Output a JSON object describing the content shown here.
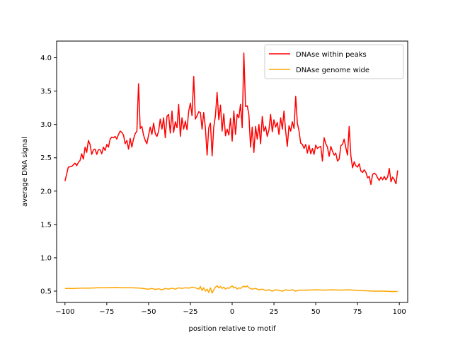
{
  "chart_data": {
    "type": "line",
    "title": "",
    "xlabel": "position relative to motif",
    "ylabel": "average DNA signal",
    "xlim": [
      -105,
      105
    ],
    "ylim": [
      0.33,
      4.25
    ],
    "xticks": [
      -100,
      -75,
      -50,
      -25,
      0,
      25,
      50,
      75,
      100
    ],
    "xtick_labels": [
      "−100",
      "−75",
      "−50",
      "−25",
      "0",
      "25",
      "50",
      "75",
      "100"
    ],
    "yticks": [
      0.5,
      1.0,
      1.5,
      2.0,
      2.5,
      3.0,
      3.5,
      4.0
    ],
    "ytick_labels": [
      "0.5",
      "1.0",
      "1.5",
      "2.0",
      "2.5",
      "3.0",
      "3.5",
      "4.0"
    ],
    "grid": false,
    "legend": "top-right",
    "series": [
      {
        "name": "DNAse within peaks",
        "color": "#ff0000",
        "points": [
          [
            -100,
            2.15
          ],
          [
            -98,
            2.36
          ],
          [
            -96,
            2.37
          ],
          [
            -94,
            2.42
          ],
          [
            -93,
            2.38
          ],
          [
            -92,
            2.43
          ],
          [
            -91,
            2.46
          ],
          [
            -90,
            2.56
          ],
          [
            -89,
            2.48
          ],
          [
            -88,
            2.66
          ],
          [
            -87,
            2.58
          ],
          [
            -86,
            2.76
          ],
          [
            -85,
            2.7
          ],
          [
            -84,
            2.55
          ],
          [
            -83,
            2.62
          ],
          [
            -82,
            2.63
          ],
          [
            -81,
            2.55
          ],
          [
            -80,
            2.62
          ],
          [
            -79,
            2.62
          ],
          [
            -78,
            2.56
          ],
          [
            -77,
            2.66
          ],
          [
            -76,
            2.61
          ],
          [
            -75,
            2.7
          ],
          [
            -74,
            2.66
          ],
          [
            -73,
            2.78
          ],
          [
            -72,
            2.81
          ],
          [
            -71,
            2.8
          ],
          [
            -70,
            2.82
          ],
          [
            -69,
            2.78
          ],
          [
            -68,
            2.85
          ],
          [
            -67,
            2.9
          ],
          [
            -66,
            2.88
          ],
          [
            -65,
            2.84
          ],
          [
            -64,
            2.71
          ],
          [
            -63,
            2.76
          ],
          [
            -62,
            2.63
          ],
          [
            -61,
            2.79
          ],
          [
            -60,
            2.66
          ],
          [
            -59,
            2.78
          ],
          [
            -58,
            2.86
          ],
          [
            -57,
            2.9
          ],
          [
            -56,
            3.61
          ],
          [
            -55,
            2.94
          ],
          [
            -54,
            2.97
          ],
          [
            -53,
            2.84
          ],
          [
            -52,
            2.76
          ],
          [
            -51,
            2.71
          ],
          [
            -50,
            2.84
          ],
          [
            -49,
            2.96
          ],
          [
            -48,
            2.85
          ],
          [
            -47,
            3.02
          ],
          [
            -46,
            2.86
          ],
          [
            -45,
            2.82
          ],
          [
            -44,
            2.9
          ],
          [
            -43,
            3.08
          ],
          [
            -42,
            2.93
          ],
          [
            -41,
            3.1
          ],
          [
            -40,
            2.8
          ],
          [
            -39,
            3.12
          ],
          [
            -38,
            3.15
          ],
          [
            -37,
            2.87
          ],
          [
            -36,
            3.2
          ],
          [
            -35,
            2.88
          ],
          [
            -34,
            3.04
          ],
          [
            -33,
            2.95
          ],
          [
            -32,
            3.3
          ],
          [
            -31,
            2.82
          ],
          [
            -30,
            3.1
          ],
          [
            -29,
            2.93
          ],
          [
            -28,
            3.05
          ],
          [
            -27,
            2.92
          ],
          [
            -26,
            3.2
          ],
          [
            -25,
            3.32
          ],
          [
            -24,
            3.13
          ],
          [
            -23,
            3.72
          ],
          [
            -22,
            3.08
          ],
          [
            -21,
            3.13
          ],
          [
            -20,
            3.19
          ],
          [
            -19,
            3.18
          ],
          [
            -18,
            2.93
          ],
          [
            -17,
            3.18
          ],
          [
            -16,
            2.95
          ],
          [
            -15,
            2.54
          ],
          [
            -14,
            2.95
          ],
          [
            -13,
            3.02
          ],
          [
            -12,
            2.53
          ],
          [
            -11,
            2.96
          ],
          [
            -10,
            3.13
          ],
          [
            -9,
            3.48
          ],
          [
            -8,
            3.07
          ],
          [
            -7,
            3.29
          ],
          [
            -6,
            2.9
          ],
          [
            -5,
            3.16
          ],
          [
            -4,
            2.83
          ],
          [
            -3,
            2.93
          ],
          [
            -2,
            2.84
          ],
          [
            -1,
            3.09
          ],
          [
            0,
            2.75
          ],
          [
            1,
            3.2
          ],
          [
            2,
            2.85
          ],
          [
            3,
            3.15
          ],
          [
            4,
            3.1
          ],
          [
            5,
            3.3
          ],
          [
            6,
            2.95
          ],
          [
            7,
            4.07
          ],
          [
            8,
            3.27
          ],
          [
            9,
            3.28
          ],
          [
            10,
            3.15
          ],
          [
            11,
            2.66
          ],
          [
            12,
            2.96
          ],
          [
            13,
            2.58
          ],
          [
            14,
            2.97
          ],
          [
            15,
            2.78
          ],
          [
            16,
            3.0
          ],
          [
            17,
            2.71
          ],
          [
            18,
            3.12
          ],
          [
            19,
            2.9
          ],
          [
            20,
            2.97
          ],
          [
            21,
            2.82
          ],
          [
            22,
            2.92
          ],
          [
            23,
            3.15
          ],
          [
            24,
            2.89
          ],
          [
            25,
            3.07
          ],
          [
            26,
            2.96
          ],
          [
            27,
            3.03
          ],
          [
            28,
            2.85
          ],
          [
            29,
            3.1
          ],
          [
            30,
            2.93
          ],
          [
            31,
            3.2
          ],
          [
            32,
            2.9
          ],
          [
            33,
            2.67
          ],
          [
            34,
            2.98
          ],
          [
            35,
            2.9
          ],
          [
            36,
            3.04
          ],
          [
            37,
            2.94
          ],
          [
            38,
            3.42
          ],
          [
            39,
            3.02
          ],
          [
            40,
            2.9
          ],
          [
            41,
            2.72
          ],
          [
            42,
            2.7
          ],
          [
            43,
            2.64
          ],
          [
            44,
            2.7
          ],
          [
            45,
            2.57
          ],
          [
            46,
            2.69
          ],
          [
            47,
            2.56
          ],
          [
            48,
            2.64
          ],
          [
            49,
            2.55
          ],
          [
            50,
            2.69
          ],
          [
            51,
            2.64
          ],
          [
            52,
            2.66
          ],
          [
            53,
            2.67
          ],
          [
            54,
            2.45
          ],
          [
            55,
            2.8
          ],
          [
            56,
            2.71
          ],
          [
            57,
            2.66
          ],
          [
            58,
            2.52
          ],
          [
            59,
            2.67
          ],
          [
            60,
            2.6
          ],
          [
            61,
            2.54
          ],
          [
            62,
            2.57
          ],
          [
            63,
            2.45
          ],
          [
            64,
            2.48
          ],
          [
            65,
            2.68
          ],
          [
            66,
            2.7
          ],
          [
            67,
            2.78
          ],
          [
            68,
            2.65
          ],
          [
            69,
            2.54
          ],
          [
            70,
            2.97
          ],
          [
            71,
            2.53
          ],
          [
            72,
            2.35
          ],
          [
            73,
            2.44
          ],
          [
            74,
            2.38
          ],
          [
            75,
            2.36
          ],
          [
            76,
            2.41
          ],
          [
            77,
            2.3
          ],
          [
            78,
            2.28
          ],
          [
            79,
            2.32
          ],
          [
            80,
            2.28
          ],
          [
            81,
            2.2
          ],
          [
            82,
            2.22
          ],
          [
            83,
            2.1
          ],
          [
            84,
            2.25
          ],
          [
            85,
            2.27
          ],
          [
            86,
            2.25
          ],
          [
            87,
            2.2
          ],
          [
            88,
            2.16
          ],
          [
            89,
            2.21
          ],
          [
            90,
            2.17
          ],
          [
            91,
            2.22
          ],
          [
            92,
            2.17
          ],
          [
            93,
            2.21
          ],
          [
            94,
            2.34
          ],
          [
            95,
            2.14
          ],
          [
            96,
            2.21
          ],
          [
            97,
            2.17
          ],
          [
            98,
            2.11
          ],
          [
            99,
            2.31
          ]
        ]
      },
      {
        "name": "DNAse genome wide",
        "color": "#ffa500",
        "points": [
          [
            -100,
            0.54
          ],
          [
            -95,
            0.54
          ],
          [
            -90,
            0.545
          ],
          [
            -85,
            0.545
          ],
          [
            -80,
            0.55
          ],
          [
            -75,
            0.55
          ],
          [
            -70,
            0.555
          ],
          [
            -65,
            0.55
          ],
          [
            -60,
            0.55
          ],
          [
            -55,
            0.545
          ],
          [
            -52,
            0.535
          ],
          [
            -50,
            0.53
          ],
          [
            -48,
            0.54
          ],
          [
            -46,
            0.525
          ],
          [
            -44,
            0.535
          ],
          [
            -42,
            0.52
          ],
          [
            -40,
            0.54
          ],
          [
            -38,
            0.53
          ],
          [
            -36,
            0.545
          ],
          [
            -34,
            0.53
          ],
          [
            -32,
            0.55
          ],
          [
            -30,
            0.54
          ],
          [
            -28,
            0.55
          ],
          [
            -26,
            0.545
          ],
          [
            -24,
            0.56
          ],
          [
            -22,
            0.55
          ],
          [
            -20,
            0.53
          ],
          [
            -19,
            0.57
          ],
          [
            -18,
            0.51
          ],
          [
            -17,
            0.55
          ],
          [
            -16,
            0.5
          ],
          [
            -15,
            0.53
          ],
          [
            -14,
            0.48
          ],
          [
            -13,
            0.55
          ],
          [
            -12,
            0.47
          ],
          [
            -11,
            0.52
          ],
          [
            -10,
            0.56
          ],
          [
            -9,
            0.58
          ],
          [
            -8,
            0.55
          ],
          [
            -7,
            0.57
          ],
          [
            -6,
            0.54
          ],
          [
            -5,
            0.56
          ],
          [
            -4,
            0.53
          ],
          [
            -3,
            0.55
          ],
          [
            -2,
            0.54
          ],
          [
            -1,
            0.56
          ],
          [
            0,
            0.58
          ],
          [
            1,
            0.55
          ],
          [
            2,
            0.56
          ],
          [
            3,
            0.53
          ],
          [
            4,
            0.55
          ],
          [
            5,
            0.54
          ],
          [
            6,
            0.56
          ],
          [
            7,
            0.575
          ],
          [
            8,
            0.56
          ],
          [
            9,
            0.58
          ],
          [
            10,
            0.55
          ],
          [
            12,
            0.53
          ],
          [
            14,
            0.54
          ],
          [
            16,
            0.52
          ],
          [
            18,
            0.53
          ],
          [
            20,
            0.51
          ],
          [
            22,
            0.52
          ],
          [
            24,
            0.5
          ],
          [
            26,
            0.52
          ],
          [
            28,
            0.51
          ],
          [
            30,
            0.5
          ],
          [
            32,
            0.52
          ],
          [
            34,
            0.51
          ],
          [
            36,
            0.52
          ],
          [
            38,
            0.5
          ],
          [
            40,
            0.515
          ],
          [
            45,
            0.515
          ],
          [
            50,
            0.52
          ],
          [
            55,
            0.515
          ],
          [
            60,
            0.52
          ],
          [
            65,
            0.515
          ],
          [
            70,
            0.52
          ],
          [
            75,
            0.51
          ],
          [
            80,
            0.505
          ],
          [
            85,
            0.5
          ],
          [
            90,
            0.5
          ],
          [
            95,
            0.495
          ],
          [
            99,
            0.495
          ]
        ]
      }
    ]
  }
}
